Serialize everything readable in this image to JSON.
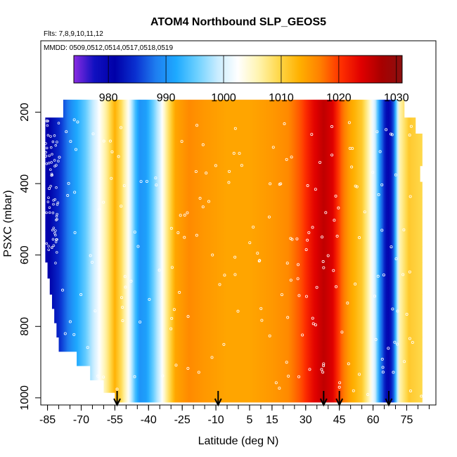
{
  "chart_data": {
    "type": "heatmap",
    "title": "ATOM4 Northbound SLP_GEOS5",
    "flights_label": "Flts: 7,8,9,10,11,12",
    "dates_label": "MMDD: 0509,0512,0514,0517,0518,0519",
    "xlabel": "Latitude (deg N)",
    "ylabel": "PSXC (mbar)",
    "xlim": [
      -88,
      88
    ],
    "ylim": [
      1020,
      0
    ],
    "x_ticks": [
      -85,
      -70,
      -55,
      -40,
      -25,
      -10,
      5,
      15,
      30,
      45,
      60,
      75
    ],
    "x_minor_ticks": [
      -85,
      -80,
      -75,
      -70,
      -65,
      -60,
      -55,
      -50,
      -45,
      -40,
      -35,
      -30,
      -25,
      -20,
      -15,
      -10,
      -5,
      0,
      5,
      10,
      15,
      20,
      25,
      30,
      35,
      40,
      45,
      50,
      55,
      60,
      65,
      70,
      75,
      80,
      85
    ],
    "y_ticks": [
      200,
      400,
      600,
      800,
      1000
    ],
    "colorbar": {
      "ticks": [
        980,
        990,
        1000,
        1010,
        1020,
        1030
      ],
      "min": 974,
      "max": 1031,
      "colors": [
        "#8a2be2",
        "#1010c0",
        "#0000a8",
        "#0a30d0",
        "#1e7ef0",
        "#1eaaff",
        "#6cd0ff",
        "#c8ecff",
        "#ffffff",
        "#fff4b0",
        "#ffd84a",
        "#ffb000",
        "#ff8000",
        "#ff3000",
        "#e00000",
        "#a80000",
        "#8a1010"
      ]
    },
    "latitude_profile": [
      {
        "lat": -86,
        "slp": 980
      },
      {
        "lat": -80,
        "slp": 984
      },
      {
        "lat": -74,
        "slp": 990
      },
      {
        "lat": -68,
        "slp": 995
      },
      {
        "lat": -63,
        "slp": 1001
      },
      {
        "lat": -58,
        "slp": 1008
      },
      {
        "lat": -55,
        "slp": 1013
      },
      {
        "lat": -52,
        "slp": 1009
      },
      {
        "lat": -49,
        "slp": 1003
      },
      {
        "lat": -46,
        "slp": 994
      },
      {
        "lat": -44,
        "slp": 990
      },
      {
        "lat": -41,
        "slp": 991
      },
      {
        "lat": -38,
        "slp": 995
      },
      {
        "lat": -35,
        "slp": 1000
      },
      {
        "lat": -32,
        "slp": 1007
      },
      {
        "lat": -28,
        "slp": 1014
      },
      {
        "lat": -22,
        "slp": 1016
      },
      {
        "lat": -15,
        "slp": 1015
      },
      {
        "lat": -5,
        "slp": 1014
      },
      {
        "lat": 5,
        "slp": 1014
      },
      {
        "lat": 15,
        "slp": 1015
      },
      {
        "lat": 22,
        "slp": 1016
      },
      {
        "lat": 28,
        "slp": 1019
      },
      {
        "lat": 33,
        "slp": 1023
      },
      {
        "lat": 38,
        "slp": 1026
      },
      {
        "lat": 42,
        "slp": 1024
      },
      {
        "lat": 46,
        "slp": 1018
      },
      {
        "lat": 50,
        "slp": 1014
      },
      {
        "lat": 55,
        "slp": 1011
      },
      {
        "lat": 58,
        "slp": 1006
      },
      {
        "lat": 61,
        "slp": 999
      },
      {
        "lat": 63,
        "slp": 990
      },
      {
        "lat": 65,
        "slp": 984
      },
      {
        "lat": 67,
        "slp": 980
      },
      {
        "lat": 69,
        "slp": 986
      },
      {
        "lat": 72,
        "slp": 1006
      },
      {
        "lat": 76,
        "slp": 1011
      },
      {
        "lat": 80,
        "slp": 1010
      },
      {
        "lat": 84,
        "slp": 1009
      }
    ],
    "profile_legs": [
      {
        "p_top": 165,
        "p_bottom": 215,
        "lat_start": -78,
        "lat_end": 74
      },
      {
        "p_top": 215,
        "p_bottom": 260,
        "lat_start": -86,
        "lat_end": 79
      },
      {
        "p_top": 260,
        "p_bottom": 305,
        "lat_start": -86,
        "lat_end": 82
      },
      {
        "p_top": 305,
        "p_bottom": 350,
        "lat_start": -86,
        "lat_end": 82
      },
      {
        "p_top": 350,
        "p_bottom": 395,
        "lat_start": -86,
        "lat_end": 81
      },
      {
        "p_top": 395,
        "p_bottom": 440,
        "lat_start": -86,
        "lat_end": 82
      },
      {
        "p_top": 440,
        "p_bottom": 485,
        "lat_start": -86,
        "lat_end": 82
      },
      {
        "p_top": 485,
        "p_bottom": 530,
        "lat_start": -86,
        "lat_end": 82
      },
      {
        "p_top": 530,
        "p_bottom": 575,
        "lat_start": -86,
        "lat_end": 82
      },
      {
        "p_top": 575,
        "p_bottom": 620,
        "lat_start": -86,
        "lat_end": 82
      },
      {
        "p_top": 620,
        "p_bottom": 665,
        "lat_start": -85,
        "lat_end": 82
      },
      {
        "p_top": 665,
        "p_bottom": 710,
        "lat_start": -84,
        "lat_end": 82
      },
      {
        "p_top": 710,
        "p_bottom": 750,
        "lat_start": -83,
        "lat_end": 82
      },
      {
        "p_top": 750,
        "p_bottom": 790,
        "lat_start": -82,
        "lat_end": 82
      },
      {
        "p_top": 790,
        "p_bottom": 830,
        "lat_start": -81,
        "lat_end": 82
      },
      {
        "p_top": 830,
        "p_bottom": 870,
        "lat_start": -80,
        "lat_end": 82
      },
      {
        "p_top": 870,
        "p_bottom": 910,
        "lat_start": -72,
        "lat_end": 82
      },
      {
        "p_top": 910,
        "p_bottom": 950,
        "lat_start": -66,
        "lat_end": 82
      },
      {
        "p_top": 950,
        "p_bottom": 985,
        "lat_start": -60,
        "lat_end": 82
      },
      {
        "p_top": 985,
        "p_bottom": 1012,
        "lat_start": -55,
        "lat_end": 82
      }
    ],
    "arrow_latitudes": [
      -54,
      -9,
      38,
      45,
      67
    ]
  }
}
